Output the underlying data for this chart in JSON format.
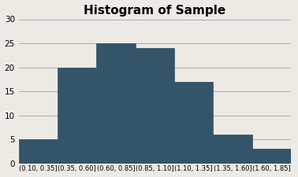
{
  "title": "Histogram of Sample",
  "title_fontsize": 11,
  "title_fontweight": "bold",
  "categories": [
    "(0.10, 0.35]",
    "(0.35, 0.60]",
    "(0.60, 0.85]",
    "(0.85, 1.10]",
    "(1.10, 1.35]",
    "(1.35, 1.60]",
    "(1.60, 1.85]"
  ],
  "values": [
    5,
    20,
    25,
    24,
    17,
    6,
    3
  ],
  "bar_color": "#34546a",
  "bar_edgecolor": "#34546a",
  "bar_linewidth": 0.5,
  "ylim": [
    0,
    30
  ],
  "yticks": [
    0,
    5,
    10,
    15,
    20,
    25,
    30
  ],
  "grid_color": "#aaaaaa",
  "grid_linewidth": 0.7,
  "background_color": "#edeae5",
  "tick_fontsize": 6.0,
  "ytick_fontsize": 7.5
}
